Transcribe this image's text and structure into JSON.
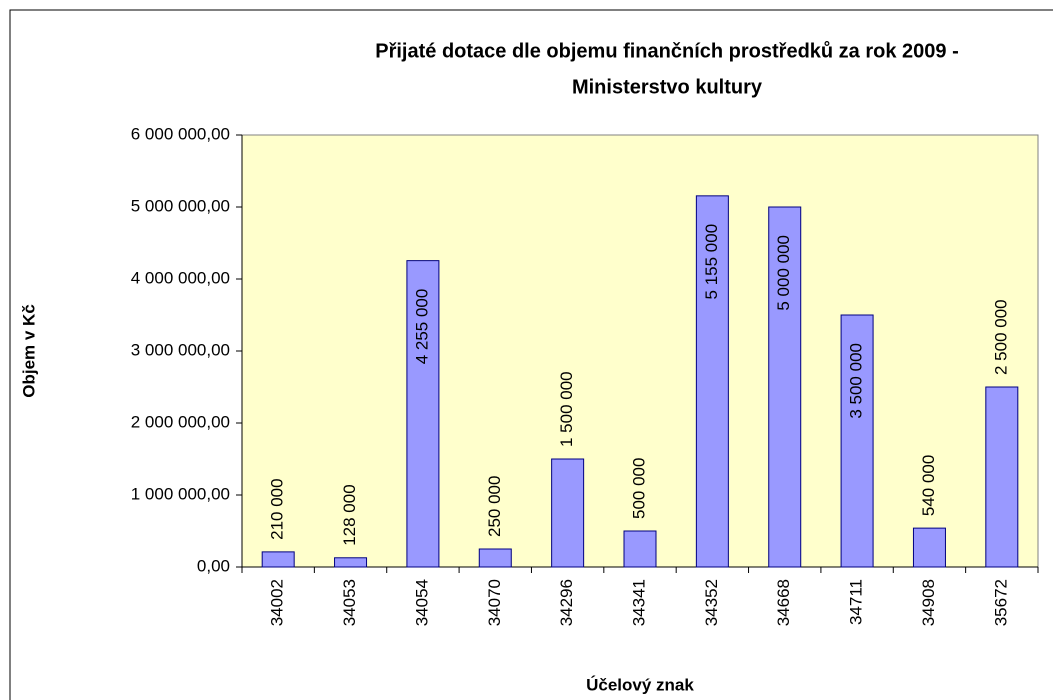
{
  "chart_data": {
    "type": "bar",
    "title": [
      "Přijaté dotace dle objemu finančních prostředků za rok 2009 -",
      "Ministerstvo kultury"
    ],
    "x_label": "Účelový znak",
    "y_label": "Objem v Kč",
    "categories": [
      "34002",
      "34053",
      "34054",
      "34070",
      "34296",
      "34341",
      "34352",
      "34668",
      "34711",
      "34908",
      "35672"
    ],
    "values": [
      210000,
      128000,
      4255000,
      250000,
      1500000,
      500000,
      5155000,
      5000000,
      3500000,
      540000,
      2500000
    ],
    "value_labels": [
      "210 000",
      "128 000",
      "4 255 000",
      "250 000",
      "1 500 000",
      "500 000",
      "5 155 000",
      "5 000 000",
      "3 500 000",
      "540 000",
      "2 500 000"
    ],
    "color": "#9999ff",
    "plot_background": "#ffffcc",
    "ylim": [
      0,
      6000000
    ],
    "yticks": [
      {
        "value": 0,
        "label": "0,00"
      },
      {
        "value": 1000000,
        "label": "1 000 000,00"
      },
      {
        "value": 2000000,
        "label": "2 000 000,00"
      },
      {
        "value": 3000000,
        "label": "3 000 000,00"
      },
      {
        "value": 4000000,
        "label": "4 000 000,00"
      },
      {
        "value": 5000000,
        "label": "5 000 000,00"
      },
      {
        "value": 6000000,
        "label": "6 000 000,00"
      }
    ],
    "grid": false
  }
}
